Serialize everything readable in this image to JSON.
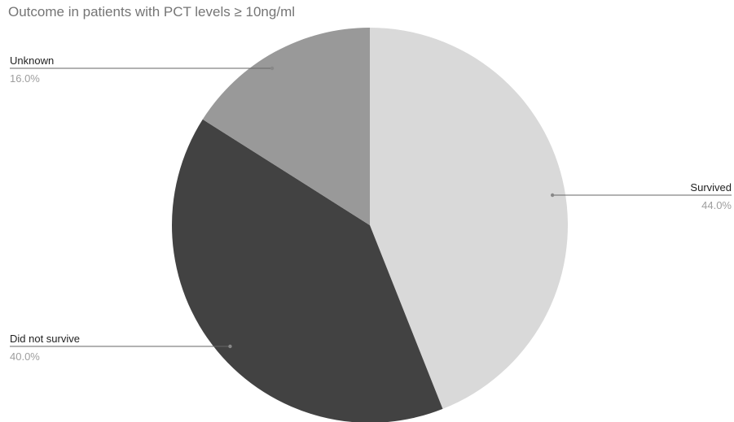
{
  "chart_data": {
    "type": "pie",
    "title": "Outcome in patients with PCT levels ≥ 10ng/ml",
    "slices": [
      {
        "label": "Survived",
        "value": 44.0,
        "display": "44.0%",
        "color": "#d9d9d9"
      },
      {
        "label": "Did not survive",
        "value": 40.0,
        "display": "40.0%",
        "color": "#424242"
      },
      {
        "label": "Unknown",
        "value": 16.0,
        "display": "16.0%",
        "color": "#999999"
      }
    ],
    "start_angle": "12 o'clock",
    "direction": "clockwise",
    "legend": "none",
    "labels": "outside with leader lines"
  }
}
